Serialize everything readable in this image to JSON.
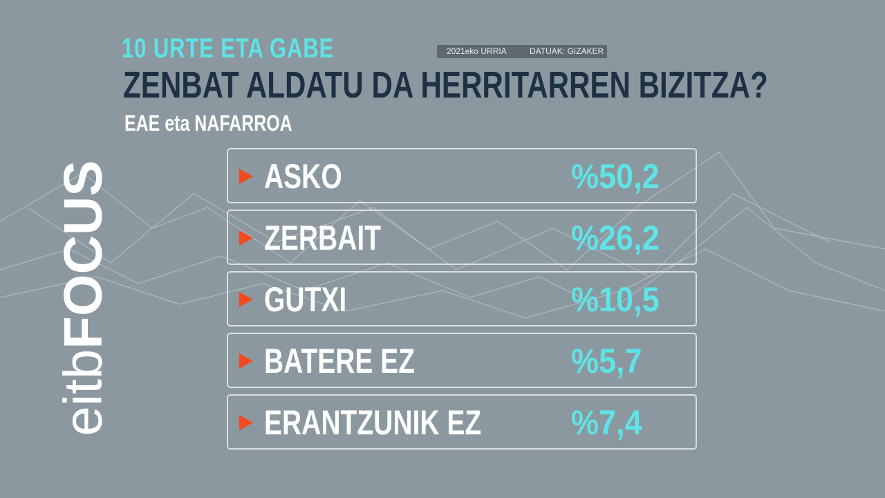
{
  "header": {
    "kicker": "10 URTE ETA GABE",
    "date": "2021eko URRIA",
    "source": "DATUAK: GIZAKER",
    "title": "ZENBAT ALDATU DA HERRITARREN BIZITZA?",
    "subtitle": "EAE eta NAFARROA"
  },
  "rows": [
    {
      "label": "ASKO",
      "value": "%50,2"
    },
    {
      "label": "ZERBAIT",
      "value": "%26,2"
    },
    {
      "label": "GUTXI",
      "value": "%10,5"
    },
    {
      "label": "BATERE EZ",
      "value": "%5,7"
    },
    {
      "label": "ERANTZUNIK EZ",
      "value": "%7,4"
    }
  ],
  "logo": {
    "brand": "eitb",
    "name": "FOCUS"
  }
}
